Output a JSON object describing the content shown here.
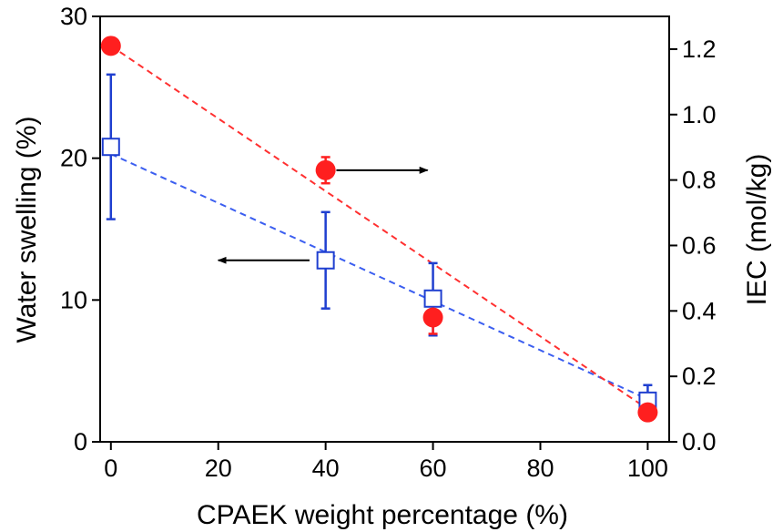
{
  "chart_data": {
    "type": "scatter",
    "xlabel": "CPAEK weight percentage (%)",
    "ylabel": "Water swelling (%)",
    "y2label": "IEC (mol/kg)",
    "xlim": [
      -2,
      104
    ],
    "ylim": [
      0,
      30
    ],
    "y2lim": [
      0,
      1.3
    ],
    "xticks": [
      "0",
      "20",
      "40",
      "60",
      "80",
      "100"
    ],
    "yticks": [
      "0",
      "10",
      "20",
      "30"
    ],
    "y2ticks": [
      "0.0",
      "0.2",
      "0.4",
      "0.6",
      "0.8",
      "1.0",
      "1.2"
    ],
    "series": [
      {
        "axis": "left",
        "marker": "open-square",
        "color": "#1f3fd0",
        "trendline_color": "#3b5ef0",
        "x": [
          0,
          40,
          60,
          100
        ],
        "values": [
          20.8,
          12.8,
          10.1,
          2.9
        ],
        "err_low": [
          15.7,
          9.4,
          7.5,
          1.7
        ],
        "err_high": [
          25.9,
          16.2,
          12.6,
          4.0
        ],
        "trendline": {
          "x": [
            0,
            100
          ],
          "y": [
            20.3,
            3.0
          ]
        }
      },
      {
        "axis": "right",
        "marker": "filled-circle",
        "color": "#ff1f1f",
        "trendline_color": "#ff3030",
        "x": [
          0,
          40,
          60,
          100
        ],
        "values": [
          1.21,
          0.83,
          0.38,
          0.09
        ],
        "err_low": [
          1.21,
          0.79,
          0.33,
          0.09
        ],
        "err_high": [
          1.21,
          0.87,
          0.43,
          0.09
        ],
        "trendline": {
          "x": [
            0,
            100
          ],
          "y": [
            1.21,
            0.1
          ]
        }
      }
    ],
    "annotations": [
      {
        "type": "arrow",
        "direction": "right",
        "points_to": "right-axis",
        "x_from": 42,
        "x_to": 59,
        "y_right": 0.83
      },
      {
        "type": "arrow",
        "direction": "left",
        "points_to": "left-axis",
        "x_from": 37,
        "x_to": 20,
        "y_left": 12.8
      }
    ],
    "grid": false,
    "legend": "none"
  }
}
